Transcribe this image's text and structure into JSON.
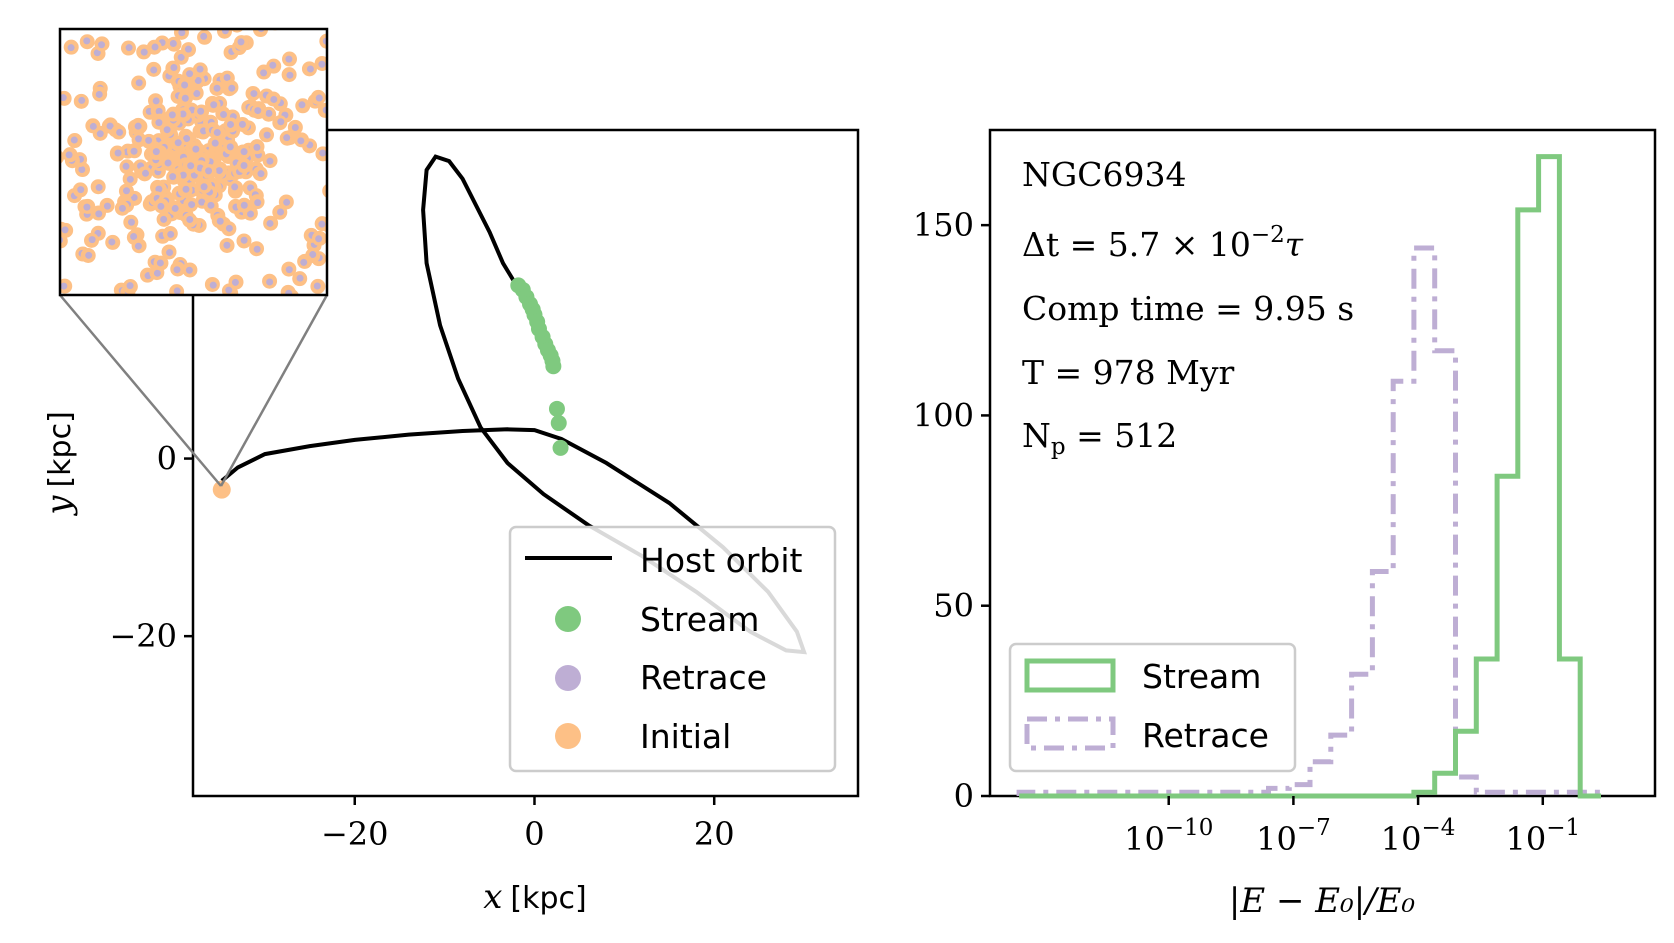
{
  "colors": {
    "host": "#000000",
    "stream": "#7fc97f",
    "retrace": "#beaed4",
    "initial": "#fdc086",
    "inset_connector": "#808080"
  },
  "chart_data": [
    {
      "type": "scatter",
      "panel": "left",
      "xlabel_var": "x",
      "xlabel_unit": "[kpc]",
      "ylabel_var": "y",
      "ylabel_unit": "[kpc]",
      "xlim": [
        -38,
        36
      ],
      "ylim": [
        -38,
        37
      ],
      "xticks": [
        -20,
        0,
        20
      ],
      "xtick_labels": [
        "−20",
        "0",
        "20"
      ],
      "yticks": [
        -20,
        0
      ],
      "ytick_labels": [
        "−20",
        "0"
      ],
      "legend_position": "lower-right",
      "legend": [
        {
          "label": "Host orbit",
          "marker": "line",
          "color": "#000000"
        },
        {
          "label": "Stream",
          "marker": "dot",
          "color": "#7fc97f"
        },
        {
          "label": "Retrace",
          "marker": "dot",
          "color": "#beaed4"
        },
        {
          "label": "Initial",
          "marker": "dot",
          "color": "#fdc086"
        }
      ],
      "series": [
        {
          "name": "Host orbit",
          "kind": "line",
          "color": "#000000",
          "points": [
            [
              -34.8,
              -2.5
            ],
            [
              -33,
              -1
            ],
            [
              -30,
              0.5
            ],
            [
              -25,
              1.4
            ],
            [
              -20,
              2.1
            ],
            [
              -14,
              2.7
            ],
            [
              -8,
              3.1
            ],
            [
              -3,
              3.3
            ],
            [
              0,
              3.2
            ],
            [
              3,
              2.2
            ],
            [
              8,
              -0.5
            ],
            [
              15,
              -5
            ],
            [
              21,
              -10
            ],
            [
              26,
              -15
            ],
            [
              29.2,
              -19.5
            ],
            [
              30,
              -21.8
            ],
            [
              28,
              -21.6
            ],
            [
              24,
              -19.5
            ],
            [
              18,
              -15
            ],
            [
              12,
              -11
            ],
            [
              6,
              -7.5
            ],
            [
              1,
              -4
            ],
            [
              -3,
              -0.5
            ],
            [
              -6,
              3.5
            ],
            [
              -8.5,
              9
            ],
            [
              -10.5,
              15
            ],
            [
              -12,
              22
            ],
            [
              -12.4,
              28
            ],
            [
              -12,
              32.5
            ],
            [
              -11,
              34
            ],
            [
              -9.5,
              33.5
            ],
            [
              -8,
              31.5
            ],
            [
              -6.5,
              28.5
            ],
            [
              -5,
              25.5
            ],
            [
              -3.5,
              22
            ],
            [
              -2,
              19.5
            ]
          ]
        },
        {
          "name": "Stream",
          "kind": "points",
          "color": "#7fc97f",
          "points": [
            [
              -1.8,
              19.5
            ],
            [
              -1.3,
              19
            ],
            [
              -0.9,
              18.2
            ],
            [
              -0.5,
              17.4
            ],
            [
              -0.2,
              16.8
            ],
            [
              0,
              16.2
            ],
            [
              0.3,
              15.4
            ],
            [
              0.5,
              14.6
            ],
            [
              0.9,
              13.7
            ],
            [
              1.2,
              12.9
            ],
            [
              1.5,
              12.2
            ],
            [
              1.8,
              11.6
            ],
            [
              2,
              11
            ],
            [
              2.1,
              10.4
            ],
            [
              2.5,
              5.6
            ],
            [
              2.7,
              4
            ],
            [
              2.9,
              1.2
            ]
          ]
        },
        {
          "name": "Initial",
          "kind": "points",
          "color": "#fdc086",
          "points": [
            [
              -34.8,
              -3.5
            ]
          ]
        }
      ]
    },
    {
      "type": "histogram",
      "panel": "right",
      "xlabel": "|E − E₀|/E₀",
      "xscale": "log",
      "xlim_log10": [
        -14.3,
        1.7
      ],
      "ylim": [
        0,
        175
      ],
      "xtick_log10": [
        -10,
        -7,
        -4,
        -1
      ],
      "xtick_bases": [
        "10",
        "10",
        "10",
        "10"
      ],
      "xtick_exponents": [
        "−10",
        "−7",
        "−4",
        "−1"
      ],
      "yticks": [
        0,
        50,
        100,
        150
      ],
      "ytick_labels": [
        "0",
        "50",
        "100",
        "150"
      ],
      "legend_position": "lower-left",
      "annotations": [
        {
          "main": "NGC6934"
        },
        {
          "main": "Δt = 5.7 × 10",
          "sup": "−2",
          "tail": "τ"
        },
        {
          "main": "Comp time = 9.95 s"
        },
        {
          "main": "T = 978 Myr"
        },
        {
          "main": "N",
          "sub": "p",
          "tail": " = 512"
        }
      ],
      "bin_edges_log10": [
        -13.6,
        -13.1,
        -12.6,
        -12.1,
        -11.6,
        -11.1,
        -10.6,
        -10.1,
        -9.6,
        -9.1,
        -8.6,
        -8.1,
        -7.6,
        -7.1,
        -6.6,
        -6.1,
        -5.6,
        -5.1,
        -4.6,
        -4.1,
        -3.6,
        -3.1,
        -2.6,
        -2.1,
        -1.6,
        -1.1,
        -0.6,
        -0.1,
        0.4
      ],
      "series": [
        {
          "name": "Stream",
          "style": "solid",
          "color": "#7fc97f",
          "counts": [
            0,
            0,
            0,
            0,
            0,
            0,
            0,
            0,
            0,
            0,
            0,
            0,
            0,
            0,
            0,
            0,
            0,
            0,
            0,
            1,
            6,
            17,
            36,
            84,
            154,
            168,
            36,
            0
          ]
        },
        {
          "name": "Retrace",
          "style": "dashdot",
          "color": "#beaed4",
          "counts": [
            1,
            1,
            1,
            1,
            1,
            1,
            1,
            1,
            1,
            1,
            1,
            1,
            2,
            3,
            9,
            16,
            32,
            59,
            109,
            144,
            117,
            5,
            1,
            1,
            1,
            1,
            1,
            1
          ]
        }
      ]
    }
  ]
}
